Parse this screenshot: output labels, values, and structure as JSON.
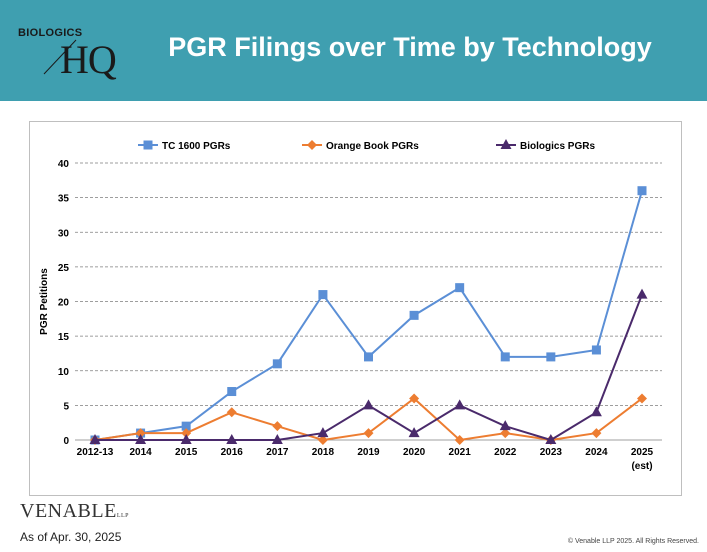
{
  "header": {
    "title": "PGR Filings over Time by Technology",
    "logo_text_top": "BIOLOGICS",
    "logo_text_main": "HQ"
  },
  "chart_data": {
    "type": "line",
    "title": "",
    "xlabel": "",
    "ylabel": "PGR Petitions",
    "ylim": [
      0,
      40
    ],
    "yticks": [
      0,
      5,
      10,
      15,
      20,
      25,
      30,
      35,
      40
    ],
    "grid": "horizontal dashed",
    "legend": "top",
    "categories": [
      "2012-13",
      "2014",
      "2015",
      "2016",
      "2017",
      "2018",
      "2019",
      "2020",
      "2021",
      "2022",
      "2023",
      "2024",
      "2025"
    ],
    "category_sublabels": [
      "",
      "",
      "",
      "",
      "",
      "",
      "",
      "",
      "",
      "",
      "",
      "",
      "(est)"
    ],
    "series": [
      {
        "name": "TC 1600 PGRs",
        "color": "#5b8fd6",
        "marker": "square",
        "values": [
          0,
          1,
          2,
          7,
          11,
          21,
          12,
          18,
          22,
          12,
          12,
          13,
          36
        ]
      },
      {
        "name": "Orange Book PGRs",
        "color": "#ed7d31",
        "marker": "diamond",
        "values": [
          0,
          1,
          1,
          4,
          2,
          0,
          1,
          6,
          0,
          1,
          0,
          1,
          6
        ]
      },
      {
        "name": "Biologics PGRs",
        "color": "#4a2a6b",
        "marker": "triangle",
        "values": [
          0,
          0,
          0,
          0,
          0,
          1,
          5,
          1,
          5,
          2,
          0,
          4,
          21
        ]
      }
    ]
  },
  "footer": {
    "firm": "VENABLE",
    "firm_suffix": "LLP",
    "as_of": "As of Apr. 30, 2025",
    "copyright": "© Venable LLP 2025. All Rights Reserved."
  }
}
